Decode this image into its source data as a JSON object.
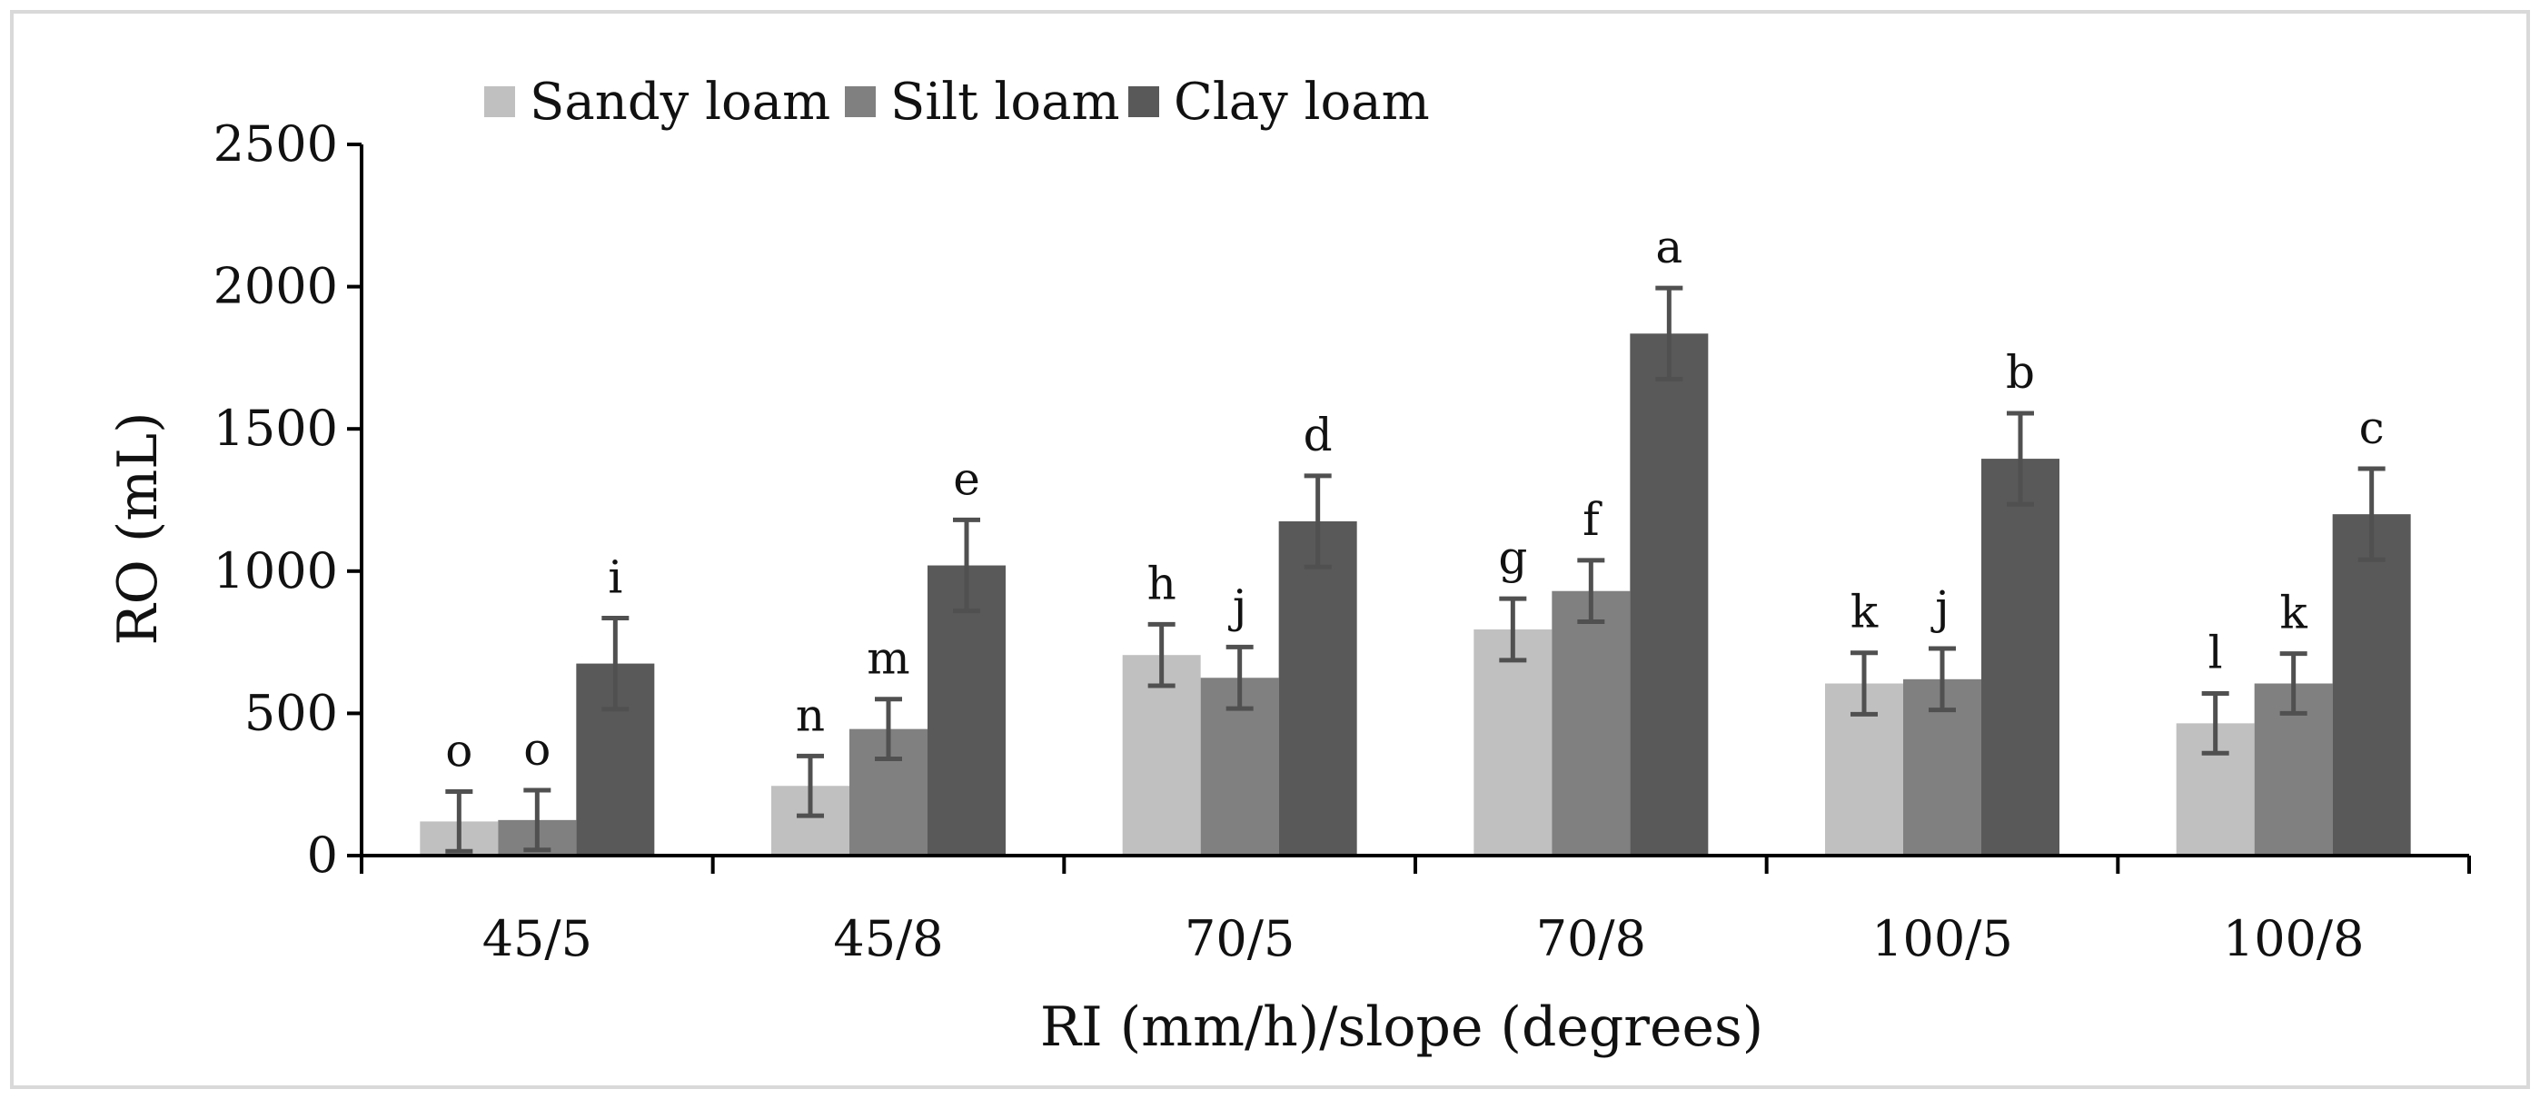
{
  "chart_data": {
    "type": "bar",
    "title": "",
    "xlabel": "RI (mm/h)/slope (degrees)",
    "ylabel": "RO (mL)",
    "ylim": [
      0,
      2500
    ],
    "yticks": [
      0,
      500,
      1000,
      1500,
      2000,
      2500
    ],
    "grid": false,
    "legend_position": "top-left",
    "categories": [
      "45/5",
      "45/8",
      "70/5",
      "70/8",
      "100/5",
      "100/8"
    ],
    "series": [
      {
        "name": "Sandy loam",
        "color": "#c0c0c0",
        "values": [
          120,
          245,
          705,
          795,
          605,
          465
        ],
        "error": [
          105,
          105,
          108,
          108,
          108,
          105
        ],
        "labels": [
          "o",
          "n",
          "h",
          "g",
          "k",
          "l"
        ]
      },
      {
        "name": "Silt loam",
        "color": "#808080",
        "values": [
          125,
          445,
          625,
          930,
          620,
          605
        ],
        "error": [
          105,
          105,
          108,
          108,
          108,
          105
        ],
        "labels": [
          "o",
          "m",
          "j",
          "f",
          "j",
          "k"
        ]
      },
      {
        "name": "Clay loam",
        "color": "#595959",
        "values": [
          675,
          1020,
          1175,
          1835,
          1395,
          1200
        ],
        "error": [
          160,
          160,
          160,
          160,
          160,
          160
        ],
        "labels": [
          "i",
          "e",
          "d",
          "a",
          "b",
          "c"
        ]
      }
    ]
  }
}
